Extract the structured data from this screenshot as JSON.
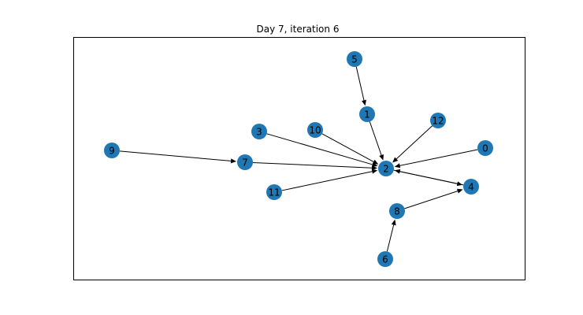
{
  "title": "Day 7, iteration 6",
  "colors": {
    "node_fill": "#1f77b4",
    "edge": "#000000",
    "frame": "#000000",
    "background": "#ffffff"
  },
  "graph": {
    "directed": true,
    "nodes": [
      {
        "id": "0",
        "label": "0"
      },
      {
        "id": "1",
        "label": "1"
      },
      {
        "id": "2",
        "label": "2"
      },
      {
        "id": "3",
        "label": "3"
      },
      {
        "id": "4",
        "label": "4"
      },
      {
        "id": "5",
        "label": "5"
      },
      {
        "id": "6",
        "label": "6"
      },
      {
        "id": "7",
        "label": "7"
      },
      {
        "id": "8",
        "label": "8"
      },
      {
        "id": "9",
        "label": "9"
      },
      {
        "id": "10",
        "label": "10"
      },
      {
        "id": "11",
        "label": "11"
      },
      {
        "id": "12",
        "label": "12"
      }
    ],
    "edges": [
      {
        "source": "5",
        "target": "1"
      },
      {
        "source": "1",
        "target": "2"
      },
      {
        "source": "12",
        "target": "2"
      },
      {
        "source": "0",
        "target": "2"
      },
      {
        "source": "3",
        "target": "2"
      },
      {
        "source": "10",
        "target": "2"
      },
      {
        "source": "7",
        "target": "2"
      },
      {
        "source": "11",
        "target": "2"
      },
      {
        "source": "9",
        "target": "7"
      },
      {
        "source": "2",
        "target": "4"
      },
      {
        "source": "4",
        "target": "2"
      },
      {
        "source": "8",
        "target": "4"
      },
      {
        "source": "6",
        "target": "8"
      }
    ]
  }
}
